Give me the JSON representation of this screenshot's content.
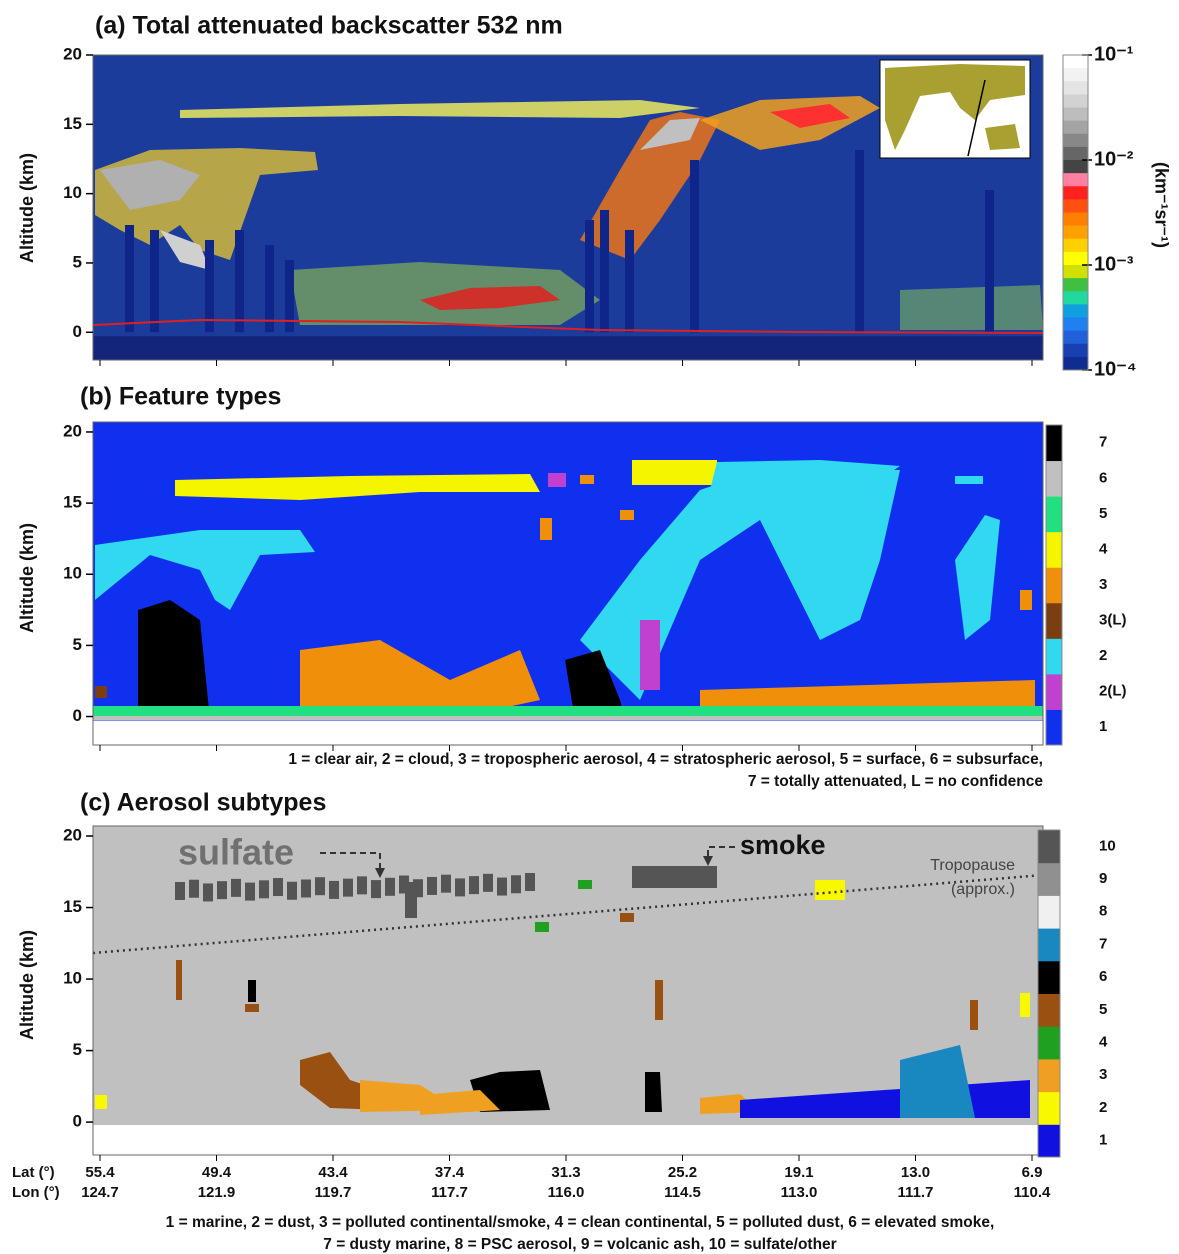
{
  "chart_data": [
    {
      "type": "curtain",
      "title": "(a) Total attenuated backscatter 532 nm",
      "ylabel": "Altitude (km)",
      "ylim": [
        -2,
        20
      ],
      "yticks": [
        0,
        5,
        10,
        15,
        20
      ],
      "colorbar": {
        "scale": "log",
        "label": "(km⁻¹sr⁻¹)",
        "lim": [
          0.0001,
          0.1
        ],
        "ticks": [
          {
            "value": 0.1,
            "label": "10⁻¹"
          },
          {
            "value": 0.01,
            "label": "10⁻²"
          },
          {
            "value": 0.001,
            "label": "10⁻³"
          },
          {
            "value": 0.0001,
            "label": "10⁻⁴"
          }
        ],
        "colors": [
          "#ffffff",
          "#f2f2f2",
          "#e4e4e4",
          "#d2d2d2",
          "#bdbdbd",
          "#a4a4a4",
          "#888888",
          "#666666",
          "#444444",
          "#ff80a0",
          "#ff2020",
          "#ff5010",
          "#ff8000",
          "#ffa000",
          "#ffd000",
          "#ffff00",
          "#d0e000",
          "#40c040",
          "#20d8a0",
          "#10a0e0",
          "#2080f0",
          "#2060d8",
          "#1840b0",
          "#102c90"
        ]
      }
    },
    {
      "type": "curtain",
      "title": "(b) Feature types",
      "ylabel": "Altitude (km)",
      "ylim": [
        -2,
        20.7
      ],
      "yticks": [
        0,
        5,
        10,
        15,
        20
      ],
      "colorbar": {
        "categories": [
          "1",
          "2(L)",
          "2",
          "3(L)",
          "3",
          "4",
          "5",
          "6",
          "7"
        ],
        "colors": [
          "#1030f0",
          "#c040d0",
          "#30d8f0",
          "#7a3e10",
          "#f0900a",
          "#f5f500",
          "#20e080",
          "#c0c0c0",
          "#000000"
        ]
      },
      "notes": [
        "1 = clear air, 2 = cloud, 3 = tropospheric aerosol, 4 = stratospheric aerosol, 5 = surface, 6 = subsurface,",
        "7 = totally attenuated, L = no confidence"
      ]
    },
    {
      "type": "curtain",
      "title": "(c) Aerosol subtypes",
      "ylabel": "Altitude (km)",
      "ylim": [
        -2.3,
        20.7
      ],
      "yticks": [
        0,
        5,
        10,
        15,
        20
      ],
      "colorbar": {
        "categories": [
          "1",
          "2",
          "3",
          "4",
          "5",
          "6",
          "7",
          "8",
          "9",
          "10"
        ],
        "colors": [
          "#1010e0",
          "#f8f800",
          "#f0a020",
          "#20a020",
          "#9a5010",
          "#000000",
          "#1a88c0",
          "#f0f0f0",
          "#909090",
          "#555555"
        ]
      },
      "annotations": [
        "sulfate",
        "smoke",
        "Tropopause",
        "(approx.)"
      ],
      "x_row_labels": [
        "Lat (°)",
        "Lon (°)"
      ],
      "x_tick_labels": {
        "lat": [
          "55.4",
          "49.4",
          "43.4",
          "37.4",
          "31.3",
          "25.2",
          "19.1",
          "13.0",
          "6.9"
        ],
        "lon": [
          "124.7",
          "121.9",
          "119.7",
          "117.7",
          "116.0",
          "114.5",
          "113.0",
          "111.7",
          "110.4"
        ]
      },
      "notes": [
        "1 = marine, 2 = dust, 3 = polluted continental/smoke, 4 = clean continental, 5 = polluted dust, 6 = elevated smoke,",
        "7 = dusty marine, 8 = PSC aerosol, 9 = volcanic ash, 10 = sulfate/other"
      ]
    }
  ]
}
